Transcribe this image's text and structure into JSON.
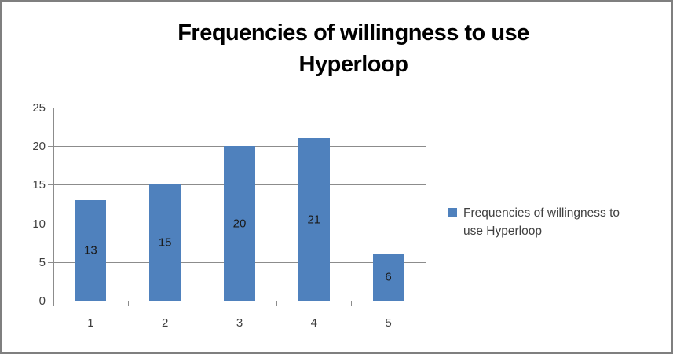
{
  "window": {
    "background": "#FFFFFF",
    "border_color": "#7F7F7F"
  },
  "chart_data": {
    "type": "bar",
    "title": "Frequencies of willingness to use Hyperloop",
    "title_lines": [
      "Frequencies of willingness to use",
      "Hyperloop"
    ],
    "categories": [
      "1",
      "2",
      "3",
      "4",
      "5"
    ],
    "series": [
      {
        "name": "Frequencies of willingness to use Hyperloop",
        "values": [
          13,
          15,
          20,
          21,
          6
        ],
        "color": "#4F81BD"
      }
    ],
    "data_labels": [
      "13",
      "15",
      "20",
      "21",
      "6"
    ],
    "xlabel": "",
    "ylabel": "",
    "ylim": [
      0,
      25
    ],
    "y_ticks": [
      "0",
      "5",
      "10",
      "15",
      "20",
      "25"
    ],
    "y_tick_interval": 5,
    "grid": "horizontal",
    "legend": {
      "position": "right",
      "lines": [
        "Frequencies of willingness to",
        "use Hyperloop"
      ],
      "marker_color": "#4F81BD"
    },
    "colors": {
      "bar": "#4F81BD",
      "gridline": "#8C8C8C",
      "axis": "#8C8C8C",
      "title_text": "#000000",
      "tick_text": "#3F3F3F",
      "data_label_text": "#1A1A1A",
      "legend_text": "#404040"
    }
  }
}
